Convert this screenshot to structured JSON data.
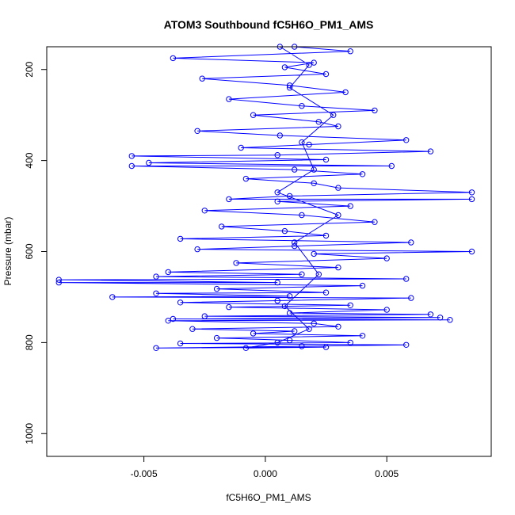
{
  "chart_data": {
    "type": "scatter",
    "title": "ATOM3 Southbound fC5H6O_PM1_AMS",
    "xlabel": "fC5H6O_PM1_AMS",
    "ylabel": "Pressure (mbar)",
    "xlim": [
      -0.009,
      0.0093
    ],
    "ylim": [
      1050,
      150
    ],
    "y_reversed": true,
    "grid": false,
    "series_color": "#0000ff",
    "marker": "open-circle",
    "connect_points": true,
    "x_ticks": [
      {
        "value": -0.005,
        "label": "-0.005"
      },
      {
        "value": 0.0,
        "label": "0.000"
      },
      {
        "value": 0.005,
        "label": "0.005"
      }
    ],
    "y_ticks": [
      {
        "value": 200,
        "label": "200"
      },
      {
        "value": 400,
        "label": "400"
      },
      {
        "value": 600,
        "label": "600"
      },
      {
        "value": 800,
        "label": "800"
      },
      {
        "value": 1000,
        "label": "1000"
      }
    ],
    "series": [
      {
        "points": [
          [
            0.0012,
            150
          ],
          [
            0.0035,
            160
          ],
          [
            -0.0038,
            175
          ],
          [
            0.002,
            185
          ],
          [
            0.0008,
            195
          ],
          [
            0.0025,
            210
          ],
          [
            -0.0026,
            220
          ],
          [
            0.001,
            235
          ],
          [
            0.0033,
            250
          ],
          [
            -0.0015,
            265
          ],
          [
            0.0015,
            280
          ],
          [
            0.0045,
            290
          ],
          [
            -0.0005,
            300
          ],
          [
            0.0022,
            315
          ],
          [
            0.003,
            325
          ],
          [
            -0.0028,
            335
          ],
          [
            0.0006,
            345
          ],
          [
            0.0058,
            355
          ],
          [
            0.0018,
            365
          ],
          [
            -0.001,
            372
          ],
          [
            0.0068,
            380
          ],
          [
            0.0005,
            388
          ],
          [
            -0.0055,
            390
          ],
          [
            0.0025,
            398
          ],
          [
            -0.0048,
            405
          ],
          [
            0.0052,
            412
          ],
          [
            -0.0055,
            412
          ],
          [
            0.0012,
            420
          ],
          [
            0.004,
            430
          ],
          [
            -0.0008,
            440
          ],
          [
            0.002,
            450
          ],
          [
            0.003,
            460
          ],
          [
            0.0085,
            470
          ],
          [
            0.001,
            478
          ],
          [
            -0.0015,
            485
          ],
          [
            0.0085,
            485
          ],
          [
            0.0005,
            490
          ],
          [
            0.0035,
            500
          ],
          [
            -0.0025,
            510
          ],
          [
            0.0015,
            520
          ],
          [
            0.0045,
            535
          ],
          [
            -0.0018,
            545
          ],
          [
            0.0008,
            555
          ],
          [
            0.0025,
            565
          ],
          [
            -0.0035,
            572
          ],
          [
            0.006,
            580
          ],
          [
            0.0012,
            588
          ],
          [
            -0.0028,
            595
          ],
          [
            0.0085,
            600
          ],
          [
            0.002,
            605
          ],
          [
            0.005,
            615
          ],
          [
            -0.0012,
            625
          ],
          [
            0.003,
            635
          ],
          [
            -0.004,
            645
          ],
          [
            0.0015,
            650
          ],
          [
            -0.0045,
            655
          ],
          [
            0.0058,
            660
          ],
          [
            -0.0085,
            662
          ],
          [
            0.0005,
            668
          ],
          [
            -0.0085,
            668
          ],
          [
            0.004,
            675
          ],
          [
            -0.002,
            682
          ],
          [
            0.0025,
            690
          ],
          [
            -0.0045,
            692
          ],
          [
            0.001,
            698
          ],
          [
            -0.0063,
            700
          ],
          [
            0.006,
            702
          ],
          [
            0.0005,
            708
          ],
          [
            -0.0035,
            712
          ],
          [
            0.0035,
            718
          ],
          [
            -0.0015,
            722
          ],
          [
            0.005,
            728
          ],
          [
            0.001,
            735
          ],
          [
            0.0068,
            738
          ],
          [
            -0.0025,
            742
          ],
          [
            0.0072,
            745
          ],
          [
            -0.0038,
            748
          ],
          [
            0.0076,
            750
          ],
          [
            -0.004,
            752
          ],
          [
            0.002,
            758
          ],
          [
            0.003,
            765
          ],
          [
            -0.003,
            770
          ],
          [
            0.0012,
            775
          ],
          [
            -0.0005,
            780
          ],
          [
            0.004,
            785
          ],
          [
            -0.002,
            790
          ],
          [
            0.001,
            795
          ],
          [
            0.0035,
            800
          ],
          [
            -0.0035,
            802
          ],
          [
            0.0058,
            805
          ],
          [
            0.0015,
            808
          ],
          [
            -0.0045,
            812
          ],
          [
            0.0025,
            810
          ],
          [
            -0.0008,
            812
          ],
          [
            0.0005,
            800
          ],
          [
            0.0018,
            770
          ],
          [
            0.0008,
            720
          ],
          [
            0.0022,
            650
          ],
          [
            0.0012,
            580
          ],
          [
            0.003,
            520
          ],
          [
            0.0005,
            470
          ],
          [
            0.002,
            420
          ],
          [
            0.0015,
            360
          ],
          [
            0.0028,
            300
          ],
          [
            0.001,
            240
          ],
          [
            0.0018,
            190
          ],
          [
            0.0006,
            150
          ]
        ]
      }
    ]
  }
}
